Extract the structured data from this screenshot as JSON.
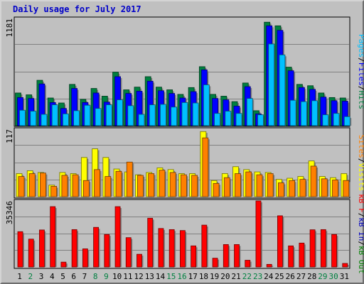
{
  "title": "Daily usage for July 2017",
  "colors": {
    "hits": "#008040",
    "files": "#0000ff",
    "pages": "#00c0ff",
    "visits": "#ffff00",
    "sites": "#ff8000",
    "kbin": "#008000",
    "kbout": "#0000c0",
    "kbf": "#ff0000",
    "weekday_label": "#000000",
    "weekend_label": "#008040"
  },
  "chart_data": [
    {
      "type": "bar",
      "title": "Daily usage for July 2017",
      "ymax_label": "1181",
      "ylim": [
        0,
        1181
      ],
      "legend": [
        {
          "text": "Pages",
          "color": "#00c0ff"
        },
        {
          "text": "/",
          "color": "#000000"
        },
        {
          "text": "Files",
          "color": "#0000ff"
        },
        {
          "text": "/",
          "color": "#000000"
        },
        {
          "text": "Hits",
          "color": "#008040"
        }
      ],
      "categories": [
        "1",
        "2",
        "3",
        "4",
        "5",
        "6",
        "7",
        "8",
        "9",
        "10",
        "11",
        "12",
        "13",
        "14",
        "15",
        "16",
        "17",
        "18",
        "19",
        "20",
        "21",
        "22",
        "23",
        "24",
        "25",
        "26",
        "27",
        "28",
        "29",
        "30",
        "31"
      ],
      "weekend": [
        false,
        true,
        false,
        false,
        false,
        false,
        false,
        true,
        true,
        false,
        false,
        false,
        false,
        false,
        true,
        true,
        false,
        false,
        false,
        false,
        false,
        true,
        true,
        false,
        false,
        false,
        false,
        false,
        true,
        true,
        false
      ],
      "series": [
        {
          "name": "Hits",
          "values": [
            360,
            340,
            500,
            305,
            250,
            455,
            290,
            410,
            325,
            590,
            395,
            425,
            540,
            425,
            395,
            345,
            420,
            650,
            345,
            325,
            265,
            470,
            165,
            1140,
            1100,
            645,
            455,
            440,
            360,
            310,
            305
          ]
        },
        {
          "name": "Files",
          "values": [
            310,
            300,
            460,
            255,
            190,
            410,
            255,
            360,
            260,
            540,
            355,
            380,
            490,
            385,
            355,
            305,
            375,
            615,
            300,
            285,
            215,
            430,
            130,
            1100,
            1050,
            605,
            420,
            400,
            315,
            275,
            270
          ]
        },
        {
          "name": "Pages",
          "values": [
            170,
            160,
            125,
            230,
            130,
            165,
            225,
            190,
            230,
            285,
            220,
            125,
            230,
            235,
            205,
            255,
            250,
            450,
            135,
            160,
            135,
            300,
            120,
            900,
            780,
            280,
            265,
            275,
            120,
            135,
            100
          ]
        }
      ]
    },
    {
      "type": "bar",
      "ymax_label": "117",
      "ylim": [
        0,
        117
      ],
      "legend": [
        {
          "text": "Sites",
          "color": "#ff8000"
        },
        {
          "text": "/",
          "color": "#000000"
        },
        {
          "text": "Visits",
          "color": "#ffff00"
        }
      ],
      "categories": [
        "1",
        "2",
        "3",
        "4",
        "5",
        "6",
        "7",
        "8",
        "9",
        "10",
        "11",
        "12",
        "13",
        "14",
        "15",
        "16",
        "17",
        "18",
        "19",
        "20",
        "21",
        "22",
        "23",
        "24",
        "25",
        "26",
        "27",
        "28",
        "29",
        "30",
        "31"
      ],
      "series": [
        {
          "name": "Visits",
          "values": [
            40,
            45,
            42,
            20,
            42,
            40,
            68,
            83,
            68,
            48,
            43,
            38,
            42,
            50,
            47,
            40,
            40,
            113,
            28,
            40,
            52,
            47,
            43,
            42,
            30,
            32,
            35,
            62,
            35,
            33,
            40
          ]
        },
        {
          "name": "Sites",
          "values": [
            35,
            40,
            41,
            18,
            37,
            38,
            28,
            47,
            35,
            44,
            60,
            37,
            40,
            46,
            42,
            38,
            37,
            102,
            23,
            33,
            40,
            43,
            38,
            40,
            24,
            28,
            30,
            53,
            31,
            29,
            28
          ]
        }
      ]
    },
    {
      "type": "bar",
      "ymax_label": "35346",
      "ylim": [
        0,
        35346
      ],
      "legend": [
        {
          "text": "kB F",
          "color": "#ff0000"
        },
        {
          "text": "/",
          "color": "#000000"
        },
        {
          "text": "kB In",
          "color": "#0000c0"
        },
        {
          "text": "/",
          "color": "#000000"
        },
        {
          "text": "kB Out",
          "color": "#008000"
        }
      ],
      "categories": [
        "1",
        "2",
        "3",
        "4",
        "5",
        "6",
        "7",
        "8",
        "9",
        "10",
        "11",
        "12",
        "13",
        "14",
        "15",
        "16",
        "17",
        "18",
        "19",
        "20",
        "21",
        "22",
        "23",
        "24",
        "25",
        "26",
        "27",
        "28",
        "29",
        "30",
        "31"
      ],
      "series": [
        {
          "name": "kB F",
          "values": [
            18900,
            14900,
            19800,
            32300,
            2600,
            20000,
            9700,
            21200,
            17400,
            32300,
            15700,
            6800,
            26100,
            20600,
            20000,
            19500,
            11300,
            22400,
            4700,
            12000,
            12000,
            3600,
            35346,
            1400,
            27400,
            11300,
            12800,
            19900,
            20000,
            17400,
            1900
          ]
        }
      ]
    }
  ]
}
